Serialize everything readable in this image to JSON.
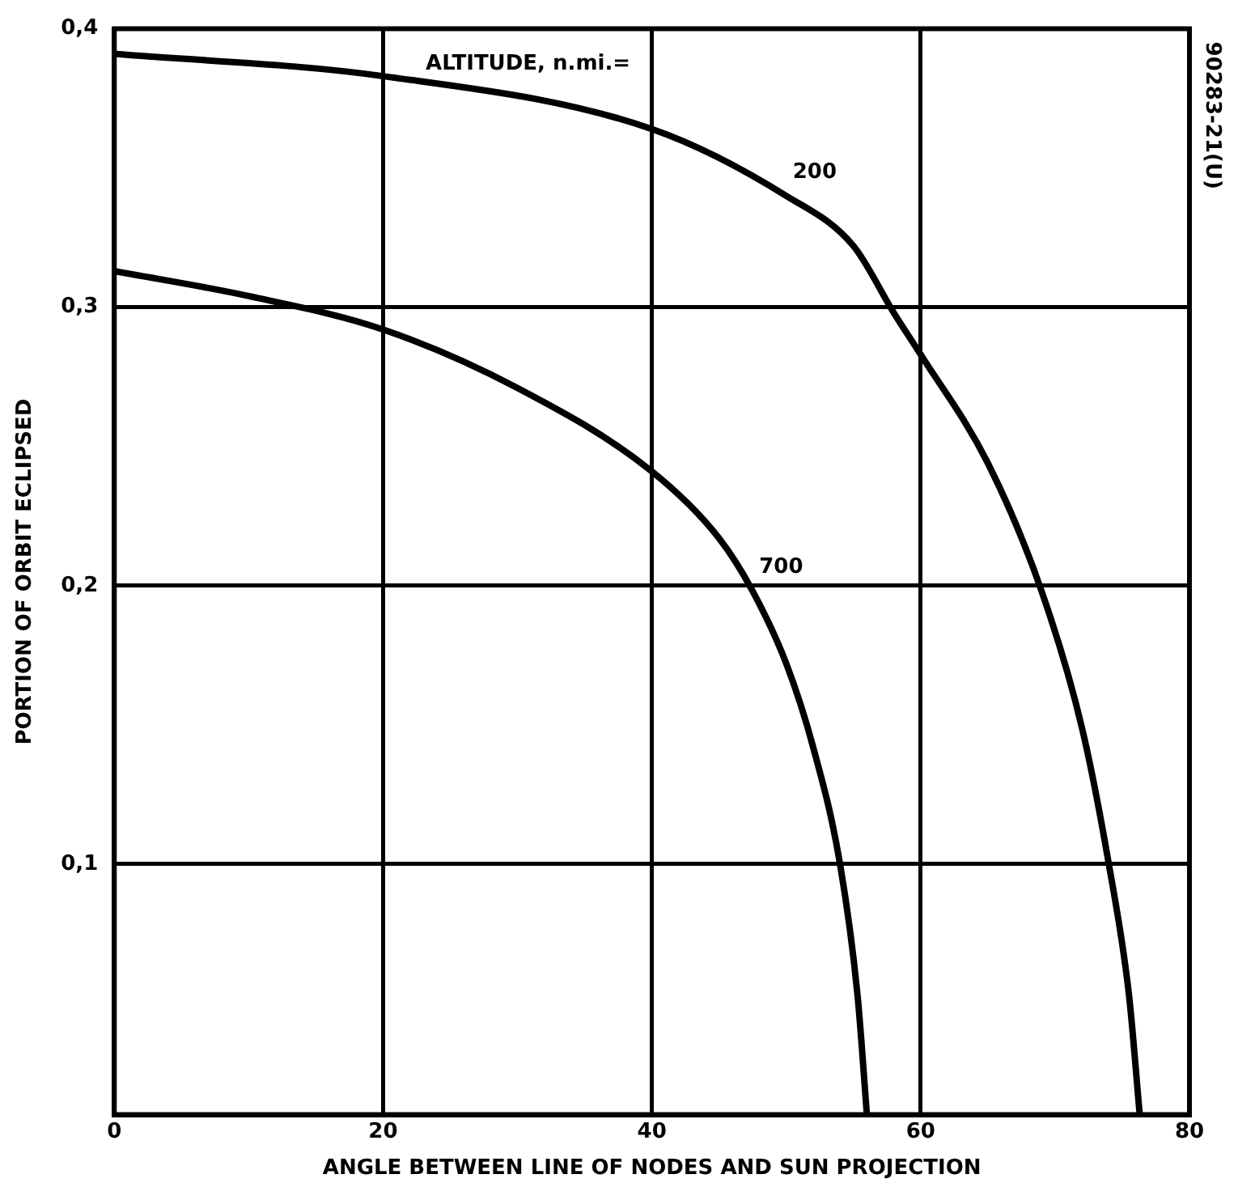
{
  "chart_data": {
    "type": "line",
    "xlabel": "ANGLE BETWEEN LINE OF NODES AND SUN PROJECTION",
    "ylabel": "PORTION OF ORBIT ECLIPSED",
    "xlim": [
      0,
      80
    ],
    "xticks": [
      0,
      20,
      40,
      60,
      80
    ],
    "ylim": [
      0.01,
      0.4
    ],
    "yticks": [
      {
        "value": 0.1,
        "label": "0,1"
      },
      {
        "value": 0.2,
        "label": "0,2"
      },
      {
        "value": 0.3,
        "label": "0,3"
      },
      {
        "value": 0.4,
        "label": "0,4"
      }
    ],
    "grid": true,
    "legend": false,
    "marker": "none",
    "line_style": "solid",
    "series": [
      {
        "name": "200",
        "color": "#000000",
        "x": [
          0,
          20,
          40,
          50,
          55,
          58,
          60,
          65,
          69,
          72,
          74,
          75.5,
          76.3
        ],
        "values": [
          0.391,
          0.383,
          0.364,
          0.34,
          0.322,
          0.298,
          0.283,
          0.244,
          0.198,
          0.149,
          0.1,
          0.053,
          0.01
        ]
      },
      {
        "name": "700",
        "color": "#000000",
        "x": [
          0,
          10,
          20,
          30,
          40,
          45,
          47.5,
          50,
          52,
          54,
          55.3,
          56
        ],
        "values": [
          0.313,
          0.304,
          0.292,
          0.271,
          0.241,
          0.217,
          0.198,
          0.172,
          0.142,
          0.1,
          0.053,
          0.01
        ]
      }
    ],
    "annotations": [
      "ALTITUDE, n.mi.=",
      "90283-21(U)"
    ]
  }
}
